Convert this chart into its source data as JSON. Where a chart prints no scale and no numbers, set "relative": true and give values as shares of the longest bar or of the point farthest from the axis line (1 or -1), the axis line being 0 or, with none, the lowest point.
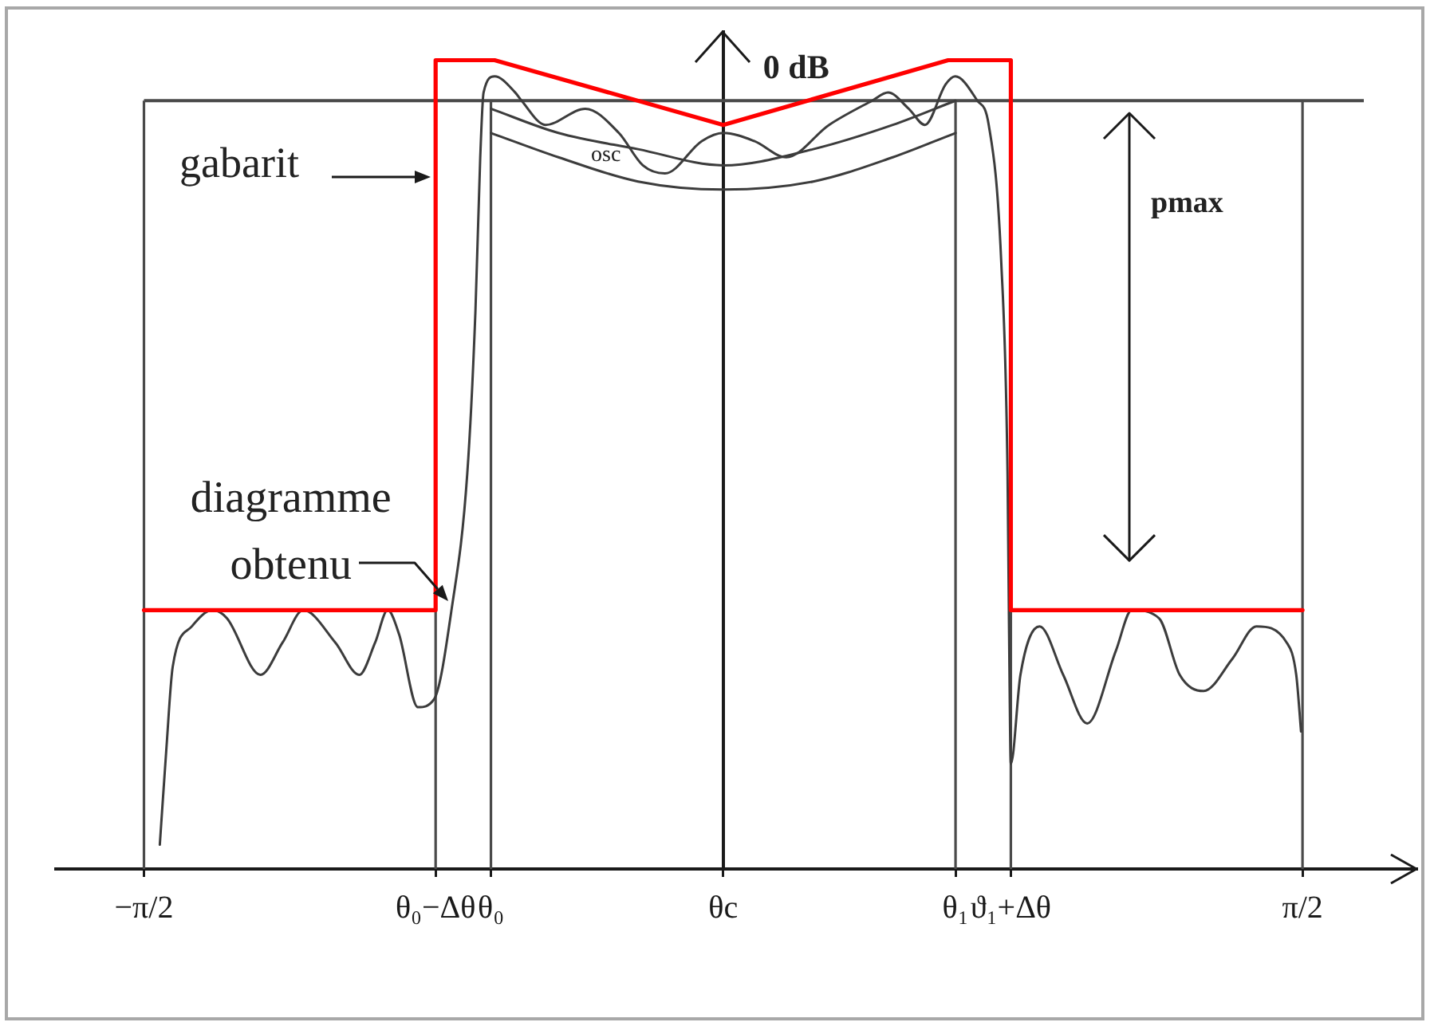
{
  "chart_data": {
    "type": "line",
    "relative": true,
    "ylabel": "0 dB",
    "marker": "none",
    "line_style": "solid",
    "xlim": [
      -1.81,
      1.88
    ],
    "xticks": [
      {
        "value": -1.571,
        "label": "−π/2"
      },
      {
        "value": -0.78,
        "label": "θ₀−Δθ"
      },
      {
        "value": -0.63,
        "label": "θ₀"
      },
      {
        "value": 0,
        "label": "θc"
      },
      {
        "value": 0.63,
        "label": "θ₁"
      },
      {
        "value": 0.78,
        "label": "ϑ₁+Δθ"
      },
      {
        "value": 1.571,
        "label": "π/2"
      }
    ],
    "series": [
      {
        "color": "#ff0000",
        "x": [
          -1.571,
          -0.78,
          -0.78,
          -0.62,
          0,
          0.61,
          0.78,
          0.78,
          1.571
        ],
        "values": [
          0.32,
          0.32,
          1,
          1,
          0.92,
          1,
          1,
          0.32,
          0.32
        ]
      },
      {
        "color": "#3c3c3c",
        "x": [
          -1.528,
          -1.51,
          -1.493,
          -1.441,
          -1.385,
          -1.346,
          -1.255,
          -1.195,
          -1.139,
          -1.052,
          -0.987,
          -0.944,
          -0.91,
          -0.879,
          -0.828,
          -0.784,
          -0.737,
          -0.694,
          -0.672,
          -0.659,
          -0.65,
          -0.62,
          -0.564,
          -0.547,
          -0.482,
          -0.374,
          -0.283,
          -0.218,
          -0.158,
          -0.058,
          0,
          0.084,
          0.171,
          0.287,
          0.404,
          0.447,
          0.503,
          0.547,
          0.603,
          0.629,
          0.689,
          0.72,
          0.754,
          0.771,
          0.775,
          0.78,
          0.806,
          0.858,
          0.922,
          0.987,
          1.065,
          1.108,
          1.182,
          1.238,
          1.303,
          1.381,
          1.446,
          1.528,
          1.554,
          1.567
        ],
        "values": [
          0.03,
          0.15,
          0.25,
          0.3,
          0.32,
          0.31,
          0.24,
          0.28,
          0.32,
          0.28,
          0.24,
          0.28,
          0.32,
          0.29,
          0.2,
          0.21,
          0.32,
          0.49,
          0.69,
          0.88,
          0.96,
          0.98,
          0.96,
          0.95,
          0.92,
          0.94,
          0.91,
          0.87,
          0.86,
          0.9,
          0.91,
          0.9,
          0.88,
          0.92,
          0.95,
          0.96,
          0.94,
          0.92,
          0.97,
          0.98,
          0.95,
          0.92,
          0.75,
          0.49,
          0.3,
          0.13,
          0.24,
          0.3,
          0.24,
          0.18,
          0.27,
          0.32,
          0.31,
          0.24,
          0.22,
          0.26,
          0.3,
          0.28,
          0.24,
          0.17
        ]
      },
      {
        "color": "#3c3c3c",
        "x": [
          -0.63,
          -0.447,
          -0.231,
          0,
          0.244,
          0.46,
          0.63
        ],
        "values": [
          0.94,
          0.91,
          0.89,
          0.87,
          0.89,
          0.92,
          0.95
        ]
      },
      {
        "color": "#3c3c3c",
        "x": [
          -0.63,
          -0.447,
          -0.231,
          0,
          0.244,
          0.46,
          0.63
        ],
        "values": [
          0.91,
          0.88,
          0.85,
          0.84,
          0.85,
          0.88,
          0.91
        ]
      }
    ],
    "ref_lines": [
      {
        "axis": "y",
        "value": 0.95
      },
      {
        "axis": "x",
        "value": -1.571
      },
      {
        "axis": "x",
        "value": -0.78
      },
      {
        "axis": "x",
        "value": -0.63
      },
      {
        "axis": "x",
        "value": 0.63
      },
      {
        "axis": "x",
        "value": 0.78
      },
      {
        "axis": "x",
        "value": 1.571
      }
    ],
    "annotations": [
      "gabarit",
      {
        "text": "diagramme obtenu",
        "x": -0.74,
        "y": 0.33
      },
      "osc",
      "pmax"
    ]
  }
}
